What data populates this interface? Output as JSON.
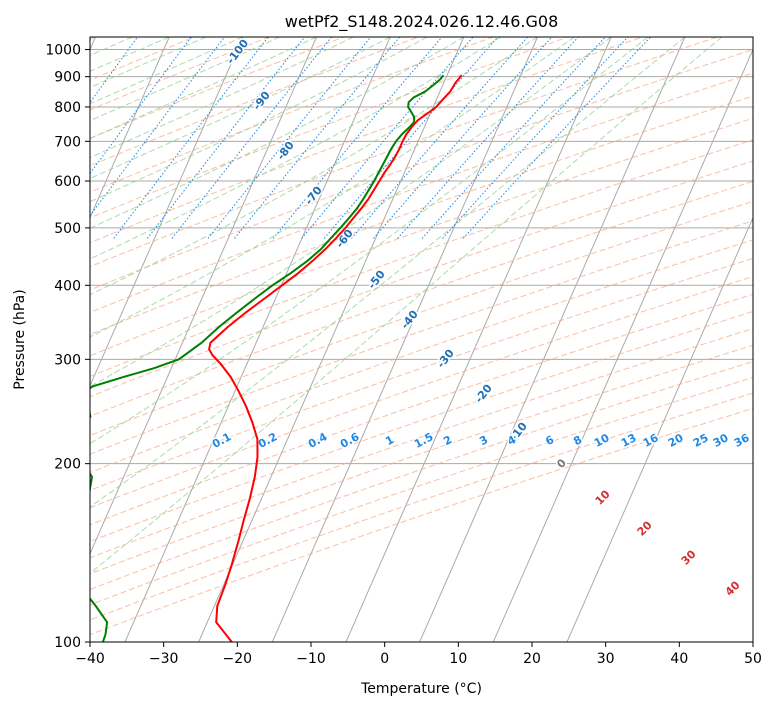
{
  "chart_data": {
    "type": "line",
    "subtype": "skew-t log-p diagram",
    "title": "wetPf2_S148.2024.026.12.46.G08",
    "xlabel": "Temperature (°C)",
    "ylabel": "Pressure (hPa)",
    "xlim": [
      -40,
      50
    ],
    "ylim": [
      1050,
      100
    ],
    "y_scale": "log",
    "grid": true,
    "x_ticks": [
      -40,
      -30,
      -20,
      -10,
      0,
      10,
      20,
      30,
      40,
      50
    ],
    "x_tick_labels": [
      "−40",
      "−30",
      "−20",
      "−10",
      "0",
      "10",
      "20",
      "30",
      "40",
      "50"
    ],
    "y_ticks": [
      100,
      200,
      300,
      400,
      500,
      600,
      700,
      800,
      900,
      1000
    ],
    "y_tick_labels": [
      "100",
      "200",
      "300",
      "400",
      "500",
      "600",
      "700",
      "800",
      "900",
      "1000"
    ],
    "colors": {
      "temperature": "#ff0000",
      "dewpoint": "#008000",
      "isotherm": "#aaaaaa",
      "isobar": "#aaaaaa",
      "dry_adiabat": "#f4a582",
      "moist_adiabat": "#8fcf8f",
      "mixing_ratio": "#1e88e5",
      "dry_label": "#d32f2f",
      "moist_label": "#1f6fb5",
      "zero_label": "#777777"
    },
    "series": [
      {
        "key": "temperature",
        "points": [
          [
            905,
            12.0
          ],
          [
            880,
            11.6
          ],
          [
            850,
            11.4
          ],
          [
            820,
            10.8
          ],
          [
            800,
            10.4
          ],
          [
            780,
            9.6
          ],
          [
            760,
            8.7
          ],
          [
            740,
            8.3
          ],
          [
            720,
            8.0
          ],
          [
            700,
            7.9
          ],
          [
            680,
            7.9
          ],
          [
            660,
            7.8
          ],
          [
            640,
            7.6
          ],
          [
            620,
            7.3
          ],
          [
            600,
            7.1
          ],
          [
            580,
            6.9
          ],
          [
            560,
            6.7
          ],
          [
            540,
            6.3
          ],
          [
            520,
            5.8
          ],
          [
            500,
            5.3
          ],
          [
            480,
            4.6
          ],
          [
            460,
            3.8
          ],
          [
            440,
            2.8
          ],
          [
            420,
            1.6
          ],
          [
            400,
            0.1
          ],
          [
            380,
            -1.5
          ],
          [
            360,
            -3.2
          ],
          [
            340,
            -4.8
          ],
          [
            320,
            -6.2
          ],
          [
            312,
            -6.0
          ],
          [
            305,
            -5.2
          ],
          [
            295,
            -3.6
          ],
          [
            280,
            -1.4
          ],
          [
            265,
            0.5
          ],
          [
            250,
            2.4
          ],
          [
            235,
            4.2
          ],
          [
            220,
            5.9
          ],
          [
            205,
            7.0
          ],
          [
            190,
            7.8
          ],
          [
            175,
            8.4
          ],
          [
            160,
            8.9
          ],
          [
            148,
            9.4
          ],
          [
            135,
            9.9
          ],
          [
            125,
            10.2
          ],
          [
            115,
            10.4
          ],
          [
            108,
            11.2
          ],
          [
            100,
            14.5
          ]
        ]
      },
      {
        "key": "dewpoint",
        "points": [
          [
            905,
            9.5
          ],
          [
            890,
            9.3
          ],
          [
            870,
            8.7
          ],
          [
            850,
            8.0
          ],
          [
            830,
            6.8
          ],
          [
            815,
            6.4
          ],
          [
            800,
            6.6
          ],
          [
            785,
            7.3
          ],
          [
            770,
            8.0
          ],
          [
            755,
            8.3
          ],
          [
            740,
            8.0
          ],
          [
            720,
            7.4
          ],
          [
            700,
            7.0
          ],
          [
            680,
            6.8
          ],
          [
            660,
            6.7
          ],
          [
            640,
            6.6
          ],
          [
            620,
            6.5
          ],
          [
            600,
            6.4
          ],
          [
            580,
            6.2
          ],
          [
            560,
            6.0
          ],
          [
            540,
            5.7
          ],
          [
            520,
            5.2
          ],
          [
            500,
            4.6
          ],
          [
            480,
            3.9
          ],
          [
            460,
            3.2
          ],
          [
            440,
            2.1
          ],
          [
            420,
            0.6
          ],
          [
            400,
            -1.2
          ],
          [
            380,
            -2.8
          ],
          [
            360,
            -4.4
          ],
          [
            340,
            -6.0
          ],
          [
            320,
            -7.4
          ],
          [
            300,
            -9.5
          ],
          [
            290,
            -12.3
          ],
          [
            280,
            -16.0
          ],
          [
            270,
            -19.6
          ],
          [
            262,
            -20.8
          ],
          [
            255,
            -20.6
          ],
          [
            248,
            -18.8
          ],
          [
            240,
            -18.1
          ],
          [
            232,
            -18.9
          ],
          [
            224,
            -20.0
          ],
          [
            216,
            -20.1
          ],
          [
            208,
            -18.3
          ],
          [
            200,
            -16.2
          ],
          [
            190,
            -14.3
          ],
          [
            180,
            -13.8
          ],
          [
            172,
            -17.6
          ],
          [
            166,
            -21.5
          ],
          [
            160,
            -20.8
          ],
          [
            153,
            -16.8
          ],
          [
            145,
            -13.9
          ],
          [
            135,
            -12.0
          ],
          [
            125,
            -9.7
          ],
          [
            115,
            -6.1
          ],
          [
            108,
            -3.6
          ],
          [
            103,
            -3.1
          ],
          [
            100,
            -3.0
          ]
        ]
      }
    ],
    "moist_labels": [
      "-100",
      "-90",
      "-80",
      "-70",
      "-60",
      "-50",
      "-40",
      "-30",
      "-20",
      "-10"
    ],
    "mixing_labels": [
      "0.1",
      "0.2",
      "0.4",
      "0.6",
      "1",
      "1.5",
      "2",
      "3",
      "4",
      "6",
      "8",
      "10",
      "13",
      "16",
      "20",
      "25",
      "30",
      "36"
    ],
    "dry_labels": [
      "0",
      "10",
      "20",
      "30",
      "40"
    ]
  }
}
